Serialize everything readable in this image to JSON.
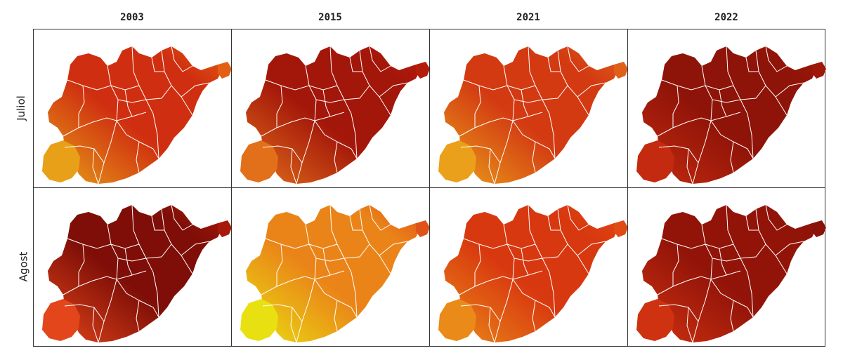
{
  "years": [
    "2003",
    "2015",
    "2021",
    "2022"
  ],
  "rows": [
    "Juliol",
    "Agost"
  ],
  "colors": {
    "deep_red": "#7a0c06",
    "dark_red": "#a3160a",
    "red": "#c8230e",
    "orange_red": "#df3e12",
    "orange": "#ea6a16",
    "amber": "#eea21a",
    "yellow": "#e9d811",
    "boundary": "#ffffff"
  },
  "panels": [
    {
      "row": "Juliol",
      "year": "2003",
      "fill": "#cf2f10",
      "west": "#e8a018",
      "east": "#e45e14"
    },
    {
      "row": "Juliol",
      "year": "2015",
      "fill": "#a3160a",
      "west": "#e2701a",
      "east": "#b51d0b"
    },
    {
      "row": "Juliol",
      "year": "2021",
      "fill": "#d33a12",
      "west": "#eaa01a",
      "east": "#e0601a"
    },
    {
      "row": "Juliol",
      "year": "2022",
      "fill": "#8e1308",
      "west": "#c42a0f",
      "east": "#9e1709"
    },
    {
      "row": "Agost",
      "year": "2003",
      "fill": "#7e0e07",
      "west": "#e3461a",
      "east": "#a8190b"
    },
    {
      "row": "Agost",
      "year": "2015",
      "fill": "#ea8418",
      "west": "#e9e011",
      "east": "#e05318"
    },
    {
      "row": "Agost",
      "year": "2021",
      "fill": "#d8380f",
      "west": "#ea8a18",
      "east": "#e04a14"
    },
    {
      "row": "Agost",
      "year": "2022",
      "fill": "#921409",
      "west": "#cf3210",
      "east": "#8a1208"
    }
  ],
  "footer": ""
}
